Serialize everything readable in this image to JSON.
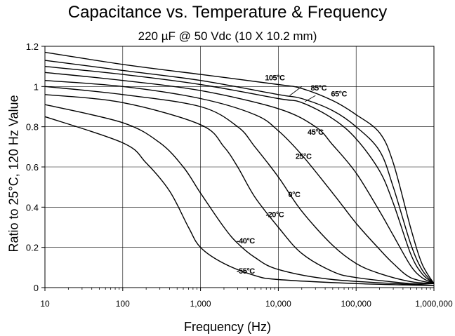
{
  "chart_data": {
    "type": "line",
    "title": "Capacitance vs. Temperature & Frequency",
    "subtitle": "220 µF @ 50 Vdc (10 X 10.2  mm)",
    "xlabel": "Frequency  (Hz)",
    "ylabel": "Ratio to 25°C, 120 Hz Value",
    "x_scale": "log",
    "xlim": [
      10,
      1000000
    ],
    "ylim": [
      0,
      1.2
    ],
    "grid": true,
    "legend": "none",
    "y_ticks": [
      {
        "value": 0,
        "label": "0"
      },
      {
        "value": 0.2,
        "label": "0.2"
      },
      {
        "value": 0.4,
        "label": "0.4"
      },
      {
        "value": 0.6,
        "label": "0.6"
      },
      {
        "value": 0.8,
        "label": "0.8"
      },
      {
        "value": 1.0,
        "label": "1"
      },
      {
        "value": 1.2,
        "label": "1.2"
      }
    ],
    "x_ticks": [
      {
        "value": 10,
        "label": "10"
      },
      {
        "value": 100,
        "label": "100"
      },
      {
        "value": 1000,
        "label": "1,000"
      },
      {
        "value": 10000,
        "label": "10,000"
      },
      {
        "value": 100000,
        "label": "100,000"
      },
      {
        "value": 1000000,
        "label": "1,000,000"
      }
    ],
    "series": [
      {
        "name": "105°C",
        "points": [
          [
            10,
            1.17
          ],
          [
            100,
            1.11
          ],
          [
            1000,
            1.06
          ],
          [
            10000,
            1.01
          ],
          [
            20000,
            0.99
          ],
          [
            50000,
            0.93
          ],
          [
            100000,
            0.86
          ],
          [
            200000,
            0.77
          ],
          [
            300000,
            0.62
          ],
          [
            500000,
            0.3
          ],
          [
            700000,
            0.12
          ],
          [
            1000000,
            0.02
          ]
        ]
      },
      {
        "name": "85°C",
        "points": [
          [
            10,
            1.13
          ],
          [
            100,
            1.08
          ],
          [
            1000,
            1.03
          ],
          [
            10000,
            0.96
          ],
          [
            20000,
            0.94
          ],
          [
            50000,
            0.88
          ],
          [
            100000,
            0.8
          ],
          [
            200000,
            0.68
          ],
          [
            300000,
            0.5
          ],
          [
            500000,
            0.22
          ],
          [
            700000,
            0.09
          ],
          [
            1000000,
            0.02
          ]
        ]
      },
      {
        "name": "65°C",
        "points": [
          [
            10,
            1.1
          ],
          [
            100,
            1.06
          ],
          [
            1000,
            1.01
          ],
          [
            10000,
            0.94
          ],
          [
            20000,
            0.92
          ],
          [
            50000,
            0.84
          ],
          [
            100000,
            0.74
          ],
          [
            200000,
            0.58
          ],
          [
            300000,
            0.42
          ],
          [
            500000,
            0.17
          ],
          [
            700000,
            0.07
          ],
          [
            1000000,
            0.02
          ]
        ]
      },
      {
        "name": "45°C",
        "points": [
          [
            10,
            1.07
          ],
          [
            100,
            1.03
          ],
          [
            1000,
            0.98
          ],
          [
            10000,
            0.89
          ],
          [
            30000,
            0.8
          ],
          [
            50000,
            0.71
          ],
          [
            100000,
            0.57
          ],
          [
            200000,
            0.38
          ],
          [
            300000,
            0.26
          ],
          [
            500000,
            0.11
          ],
          [
            700000,
            0.05
          ],
          [
            1000000,
            0.02
          ]
        ]
      },
      {
        "name": "25°C",
        "points": [
          [
            10,
            1.03
          ],
          [
            100,
            1.0
          ],
          [
            1000,
            0.94
          ],
          [
            5000,
            0.86
          ],
          [
            10000,
            0.78
          ],
          [
            20000,
            0.66
          ],
          [
            50000,
            0.47
          ],
          [
            100000,
            0.32
          ],
          [
            200000,
            0.19
          ],
          [
            300000,
            0.12
          ],
          [
            500000,
            0.05
          ],
          [
            1000000,
            0.02
          ]
        ]
      },
      {
        "name": "0°C",
        "points": [
          [
            10,
            1.0
          ],
          [
            100,
            0.96
          ],
          [
            1000,
            0.9
          ],
          [
            3000,
            0.8
          ],
          [
            5000,
            0.7
          ],
          [
            10000,
            0.55
          ],
          [
            20000,
            0.38
          ],
          [
            50000,
            0.21
          ],
          [
            100000,
            0.12
          ],
          [
            200000,
            0.07
          ],
          [
            500000,
            0.03
          ],
          [
            1000000,
            0.02
          ]
        ]
      },
      {
        "name": "-20°C",
        "points": [
          [
            10,
            0.96
          ],
          [
            100,
            0.92
          ],
          [
            1000,
            0.81
          ],
          [
            2000,
            0.7
          ],
          [
            3000,
            0.6
          ],
          [
            5000,
            0.45
          ],
          [
            10000,
            0.3
          ],
          [
            20000,
            0.17
          ],
          [
            50000,
            0.08
          ],
          [
            100000,
            0.05
          ],
          [
            500000,
            0.02
          ],
          [
            1000000,
            0.02
          ]
        ]
      },
      {
        "name": "-40°C",
        "points": [
          [
            10,
            0.91
          ],
          [
            100,
            0.82
          ],
          [
            300,
            0.72
          ],
          [
            600,
            0.6
          ],
          [
            1000,
            0.47
          ],
          [
            2000,
            0.3
          ],
          [
            3000,
            0.22
          ],
          [
            5000,
            0.15
          ],
          [
            10000,
            0.09
          ],
          [
            50000,
            0.04
          ],
          [
            1000000,
            0.01
          ]
        ]
      },
      {
        "name": "-55°C",
        "points": [
          [
            10,
            0.85
          ],
          [
            100,
            0.72
          ],
          [
            200,
            0.62
          ],
          [
            400,
            0.48
          ],
          [
            700,
            0.3
          ],
          [
            1000,
            0.2
          ],
          [
            2000,
            0.12
          ],
          [
            5000,
            0.06
          ],
          [
            10000,
            0.04
          ],
          [
            100000,
            0.02
          ],
          [
            1000000,
            0.01
          ]
        ]
      }
    ],
    "labels": [
      {
        "text": "105°C",
        "x": 9000,
        "y": 1.03
      },
      {
        "text": "85°C",
        "x": 33000,
        "y": 0.98
      },
      {
        "text": "65°C",
        "x": 60000,
        "y": 0.95
      },
      {
        "text": "45°C",
        "x": 30000,
        "y": 0.76
      },
      {
        "text": "25°C",
        "x": 21000,
        "y": 0.64
      },
      {
        "text": "0°C",
        "x": 16000,
        "y": 0.45
      },
      {
        "text": "-20°C",
        "x": 9000,
        "y": 0.35
      },
      {
        "text": "-40°C",
        "x": 3800,
        "y": 0.22
      },
      {
        "text": "-55°C",
        "x": 3800,
        "y": 0.07
      }
    ],
    "label_pointers": [
      {
        "from": [
          20000,
          1.0
        ],
        "to": [
          14000,
          0.955
        ]
      },
      {
        "from": [
          30000,
          0.955
        ],
        "to": [
          22000,
          0.925
        ]
      }
    ]
  }
}
